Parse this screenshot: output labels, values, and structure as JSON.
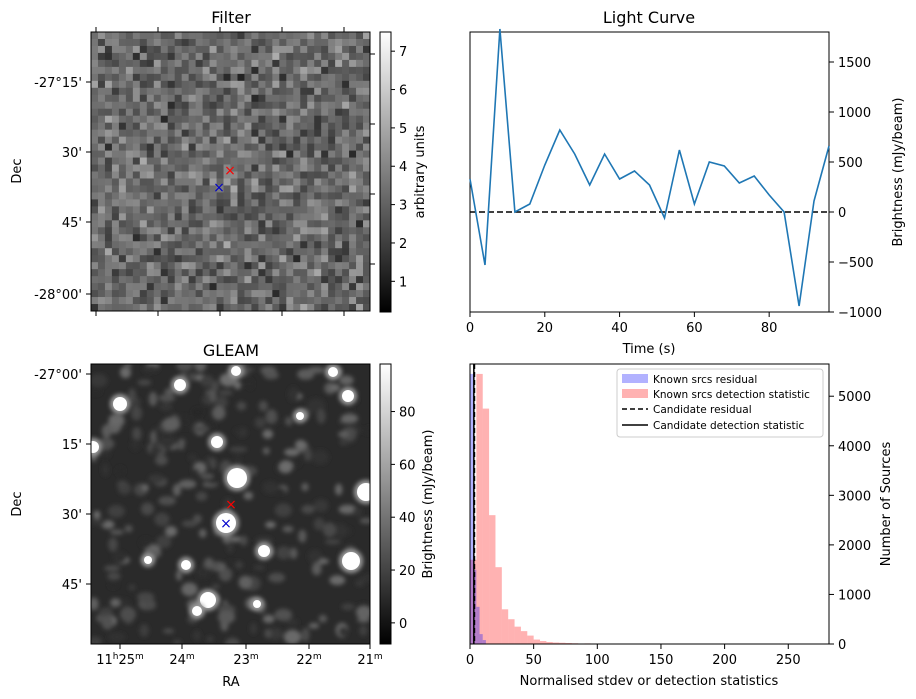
{
  "chart_data": [
    {
      "type": "heatmap",
      "title": "Filter",
      "ylabel": "Dec",
      "colorbar_label": "arbitrary units",
      "colorbar_ticks": [
        "1",
        "2",
        "3",
        "4",
        "5",
        "6",
        "7"
      ],
      "colorbar_range": [
        0.2,
        7.5
      ],
      "dec_ticks": [
        "-27°15'",
        "30'",
        "45'",
        "-28°00'"
      ],
      "markers": [
        {
          "symbol": "×",
          "color": "#ff0000"
        },
        {
          "symbol": "×",
          "color": "#0000cc"
        }
      ]
    },
    {
      "type": "line",
      "title": "Light Curve",
      "xlabel": "Time (s)",
      "ylabel": "Brightness (mJy/beam)",
      "xlim": [
        0,
        96
      ],
      "ylim": [
        -1000,
        1800
      ],
      "x_ticks": [
        "0",
        "20",
        "40",
        "60",
        "80"
      ],
      "y_ticks": [
        "−1000",
        "−500",
        "0",
        "500",
        "1000",
        "1500"
      ],
      "x": [
        0,
        4,
        8,
        12,
        16,
        20,
        24,
        28,
        32,
        36,
        40,
        44,
        48,
        52,
        56,
        60,
        64,
        68,
        72,
        76,
        80,
        84,
        88,
        92,
        96
      ],
      "y": [
        330,
        -530,
        1830,
        0,
        80,
        470,
        820,
        580,
        270,
        580,
        330,
        410,
        270,
        -60,
        620,
        80,
        500,
        460,
        290,
        360,
        170,
        0,
        -940,
        110,
        660
      ],
      "baseline": 0,
      "line_color": "#1f77b4"
    },
    {
      "type": "heatmap",
      "title": "GLEAM",
      "xlabel": "RA",
      "ylabel": "Dec",
      "colorbar_label": "Brightness (mJy/beam)",
      "colorbar_ticks": [
        "0",
        "20",
        "40",
        "60",
        "80"
      ],
      "colorbar_range": [
        -8,
        98
      ],
      "dec_ticks": [
        "-27°00'",
        "15'",
        "30'",
        "45'"
      ],
      "ra_ticks": [
        "11h25m",
        "24m",
        "23m",
        "22m",
        "21m"
      ],
      "markers": [
        {
          "symbol": "×",
          "color": "#ff0000"
        },
        {
          "symbol": "×",
          "color": "#0000cc"
        }
      ]
    },
    {
      "type": "bar",
      "xlabel": "Normalised stdev or detection statistics",
      "ylabel": "Number of Sources",
      "xlim": [
        0,
        282
      ],
      "ylim": [
        0,
        5650
      ],
      "x_ticks": [
        "0",
        "50",
        "100",
        "150",
        "200",
        "250"
      ],
      "y_ticks": [
        "0",
        "1000",
        "2000",
        "3000",
        "4000",
        "5000"
      ],
      "bin_width": 5,
      "series": [
        {
          "name": "Known srcs residual",
          "color": "#0000ff",
          "opacity": 0.3,
          "bin_start": [
            0,
            2.5,
            5,
            7.5,
            10
          ],
          "values": [
            5450,
            1500,
            750,
            200,
            80
          ]
        },
        {
          "name": "Known srcs detection statistic",
          "color": "#ff0000",
          "opacity": 0.3,
          "bin_start": [
            0,
            5,
            10,
            15,
            20,
            25,
            30,
            35,
            40,
            45,
            50,
            55,
            60,
            65,
            70,
            75,
            80,
            90,
            100,
            120,
            150,
            180,
            200,
            230,
            260,
            270
          ],
          "values": [
            1700,
            5450,
            4750,
            2600,
            1550,
            700,
            500,
            350,
            260,
            170,
            90,
            60,
            40,
            30,
            25,
            20,
            15,
            12,
            10,
            8,
            6,
            5,
            5,
            4,
            3,
            3
          ]
        }
      ],
      "lines": [
        {
          "name": "Candidate residual",
          "style": "dashed",
          "x": 3.5
        },
        {
          "name": "Candidate detection statistic",
          "style": "solid",
          "x": 3.0
        }
      ],
      "legend_position": "top-right"
    }
  ]
}
